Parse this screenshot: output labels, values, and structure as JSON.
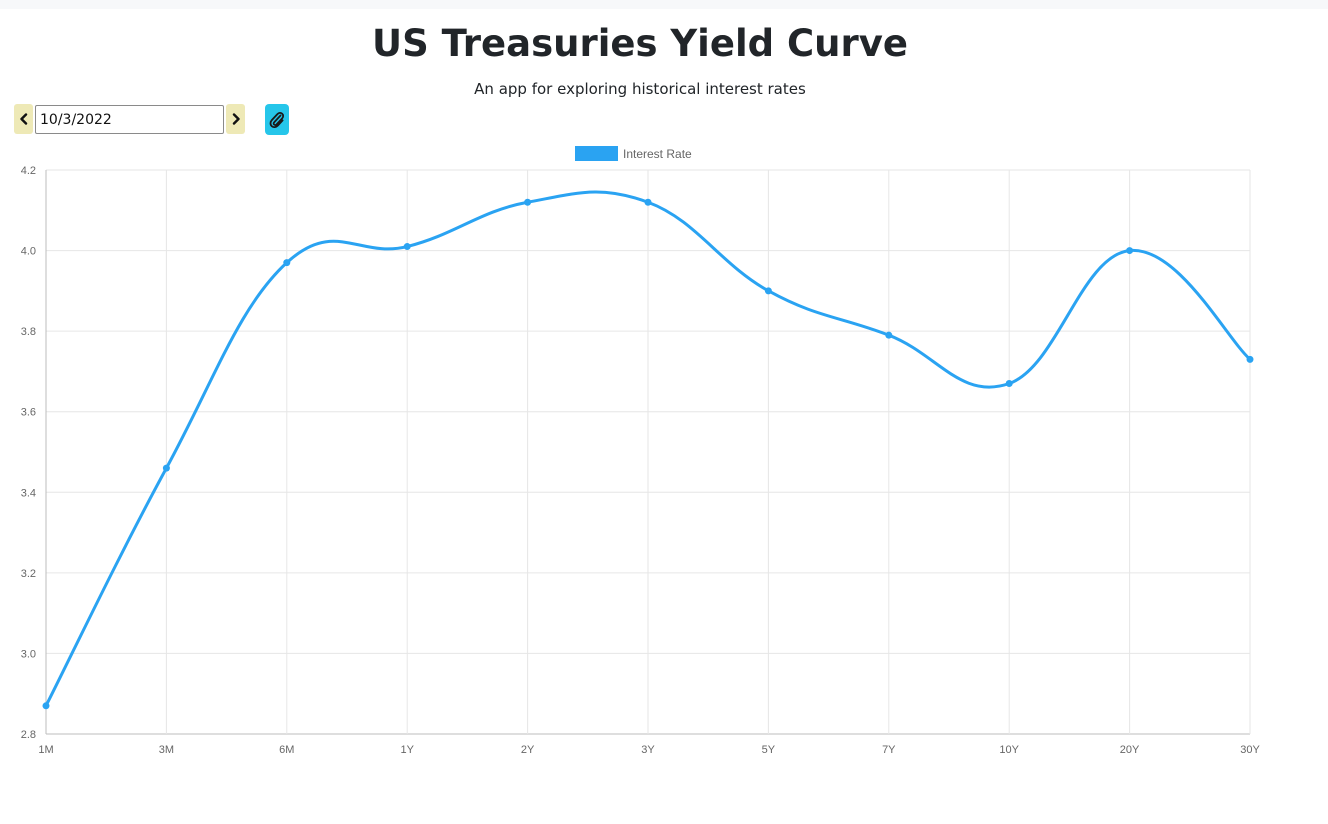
{
  "header": {
    "title": "US Treasuries Yield Curve",
    "subtitle": "An app for exploring historical interest rates"
  },
  "controls": {
    "date_value": "10/3/2022",
    "prev_icon": "chevron-left-icon",
    "next_icon": "chevron-right-icon",
    "attach_icon": "paperclip-icon",
    "nav_button_color": "#eee9b6",
    "attach_button_color": "#26c6ea"
  },
  "chart_data": {
    "type": "line",
    "categories": [
      "1M",
      "3M",
      "6M",
      "1Y",
      "2Y",
      "3Y",
      "5Y",
      "7Y",
      "10Y",
      "20Y",
      "30Y"
    ],
    "series": [
      {
        "name": "Interest Rate",
        "values": [
          2.87,
          3.46,
          3.97,
          4.01,
          4.12,
          4.12,
          3.9,
          3.79,
          3.67,
          4.0,
          3.73
        ],
        "color": "#2aa3f2"
      }
    ],
    "ylim": [
      2.8,
      4.2
    ],
    "yticks": [
      "2.8",
      "3.0",
      "3.2",
      "3.4",
      "3.6",
      "3.8",
      "4.0",
      "4.2"
    ],
    "grid": true,
    "legend": "top-center",
    "smooth": true
  }
}
